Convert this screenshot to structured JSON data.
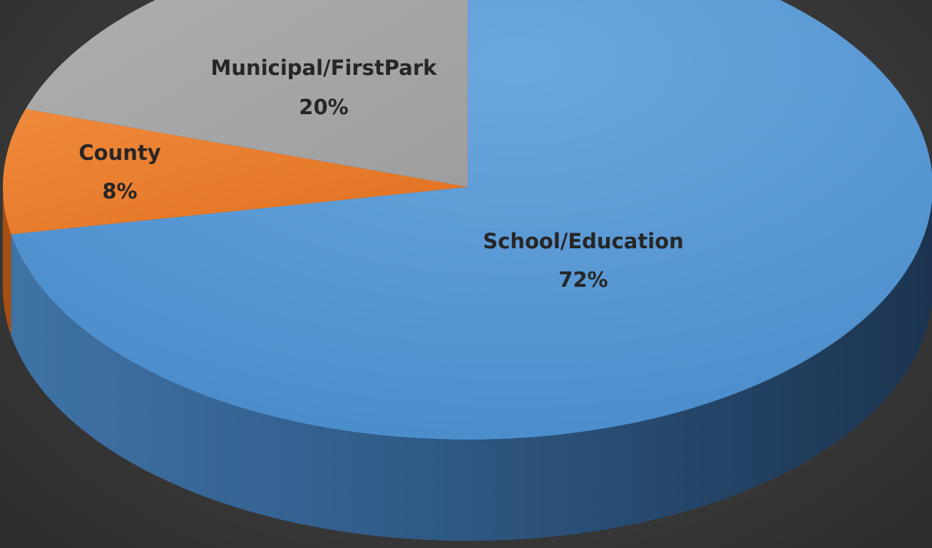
{
  "chart_data": {
    "type": "pie",
    "style": "3d",
    "categories": [
      "School/Education",
      "County",
      "Municipal/FirstPark"
    ],
    "values": [
      72,
      8,
      20
    ],
    "value_labels": [
      "72%",
      "8%",
      "20%"
    ],
    "colors": [
      "#5b9bd5",
      "#ed7d31",
      "#a5a5a5"
    ],
    "title": "",
    "legend": "none",
    "data_labels": "category and percentage on slices"
  }
}
